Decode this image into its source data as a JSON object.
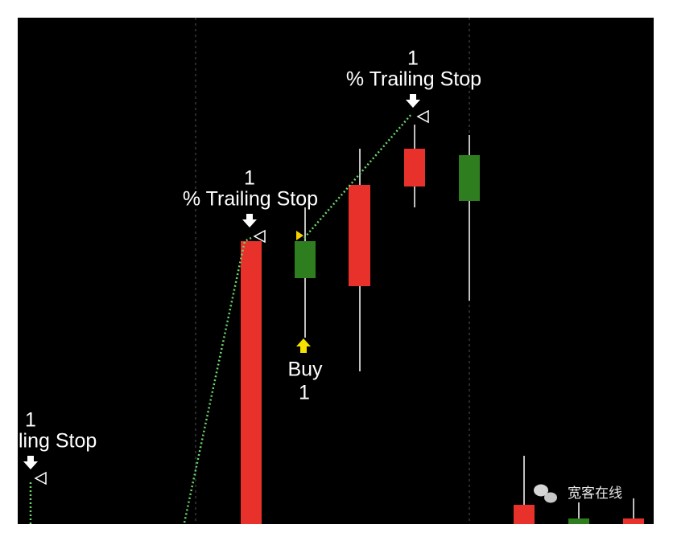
{
  "annotations": [
    {
      "count": 1,
      "label": "% Trailing Stop"
    },
    {
      "count": 1,
      "label": "% Trailing Stop"
    },
    {
      "count": 1,
      "label": "ling Stop"
    }
  ],
  "buy": {
    "label": "Buy",
    "count": 1
  },
  "watermark": "宽客在线"
}
